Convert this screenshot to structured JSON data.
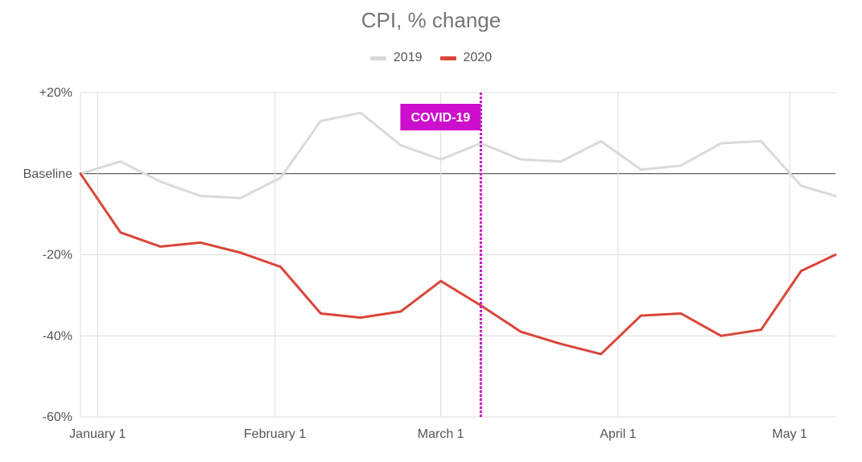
{
  "chart_data": {
    "type": "line",
    "title": "CPI, % change",
    "xlabel": "",
    "ylabel": "",
    "ylim": [
      -60,
      20
    ],
    "y_ticks": [
      {
        "value": 20,
        "label": "+20%"
      },
      {
        "value": 0,
        "label": "Baseline"
      },
      {
        "value": -20,
        "label": "-20%"
      },
      {
        "value": -40,
        "label": "-40%"
      },
      {
        "value": -60,
        "label": "-60%"
      }
    ],
    "x_domain": [
      0,
      132
    ],
    "x_ticks": [
      {
        "value": 3,
        "label": "January 1"
      },
      {
        "value": 34,
        "label": "February 1"
      },
      {
        "value": 63,
        "label": "March 1"
      },
      {
        "value": 94,
        "label": "April 1"
      },
      {
        "value": 124,
        "label": "May 1"
      }
    ],
    "x": [
      0,
      7,
      14,
      21,
      28,
      35,
      42,
      49,
      56,
      63,
      70,
      77,
      84,
      91,
      98,
      105,
      112,
      119,
      126,
      133
    ],
    "series": [
      {
        "name": "2019",
        "color": "#dadada",
        "values": [
          0,
          3,
          -2,
          -5.5,
          -6,
          -1,
          13,
          15,
          7,
          3.5,
          7.5,
          3.5,
          3,
          8,
          1,
          2,
          7.5,
          8,
          -3,
          -5.5
        ]
      },
      {
        "name": "2020",
        "color": "#d9463b",
        "values": [
          0,
          -14.5,
          -18,
          -17,
          -19.5,
          -23,
          -34.5,
          -35.5,
          -34,
          -26.5,
          -32.5,
          -39,
          -42,
          -44.5,
          -35,
          -34.5,
          -40,
          -38.5,
          -24,
          -20
        ]
      }
    ],
    "annotation": {
      "label": "COVID-19",
      "x": 70,
      "color": "#cc0fcc"
    },
    "grid": true,
    "legend_position": "top-center"
  }
}
